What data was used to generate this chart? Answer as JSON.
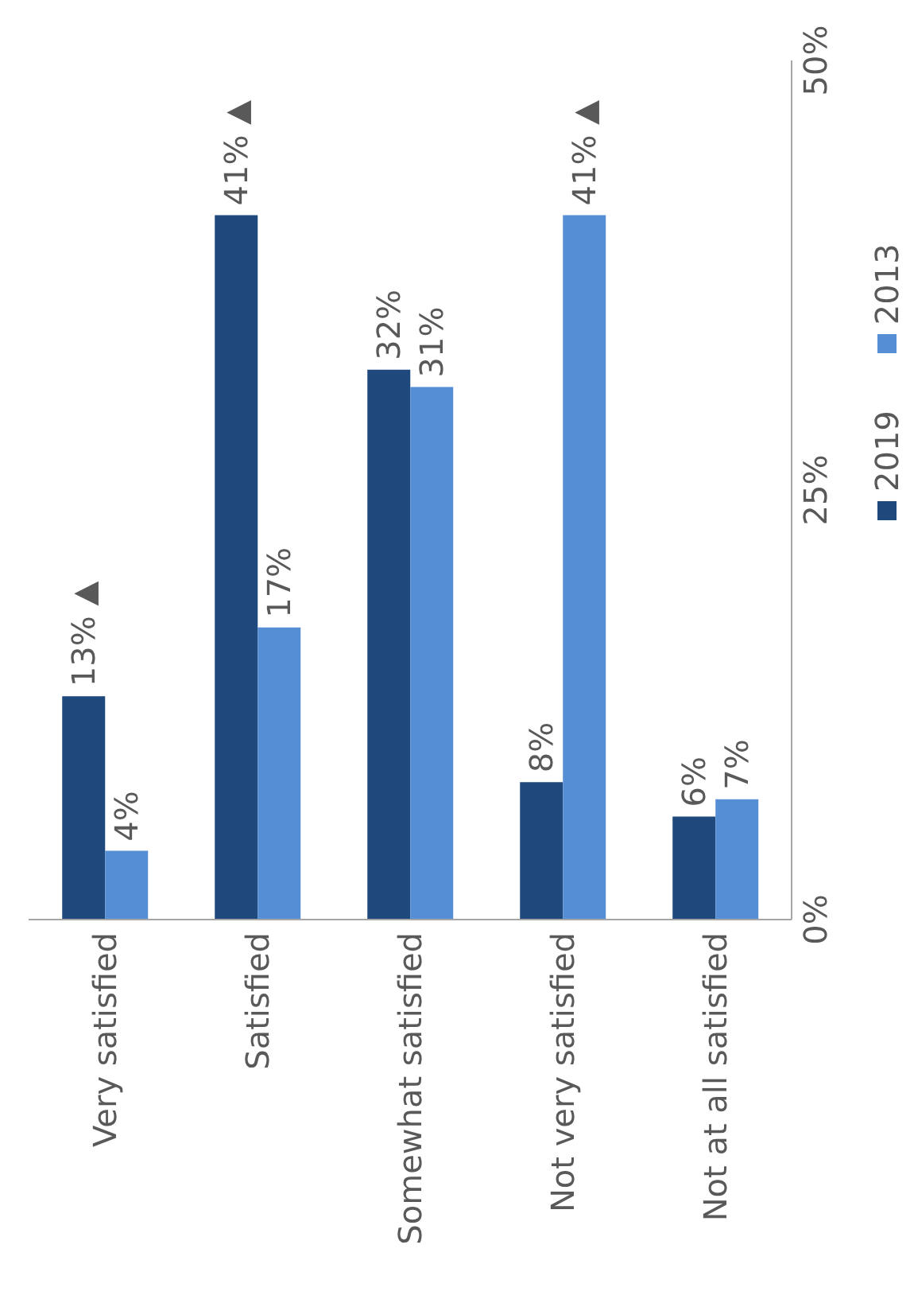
{
  "chart_data": {
    "type": "bar",
    "categories": [
      "Very satisfied",
      "Satisfied",
      "Somewhat satisfied",
      "Not very satisfied",
      "Not at all satisfied"
    ],
    "series": [
      {
        "name": "2019",
        "color": "#1f497d",
        "values": [
          13,
          41,
          32,
          8,
          6
        ],
        "value_labels": [
          "13% ▲",
          "41% ▲",
          "32%",
          "8%",
          "6%"
        ]
      },
      {
        "name": "2013",
        "color": "#558ed5",
        "values": [
          4,
          17,
          31,
          41,
          7
        ],
        "value_labels": [
          "4%",
          "17%",
          "31%",
          "41% ▲",
          "7%"
        ]
      }
    ],
    "ylim": [
      0,
      50
    ],
    "yticks": [
      {
        "value": 0,
        "label": "0%"
      },
      {
        "value": 25,
        "label": "25%"
      },
      {
        "value": 50,
        "label": "50%"
      }
    ],
    "grid": false,
    "legend": "right"
  }
}
